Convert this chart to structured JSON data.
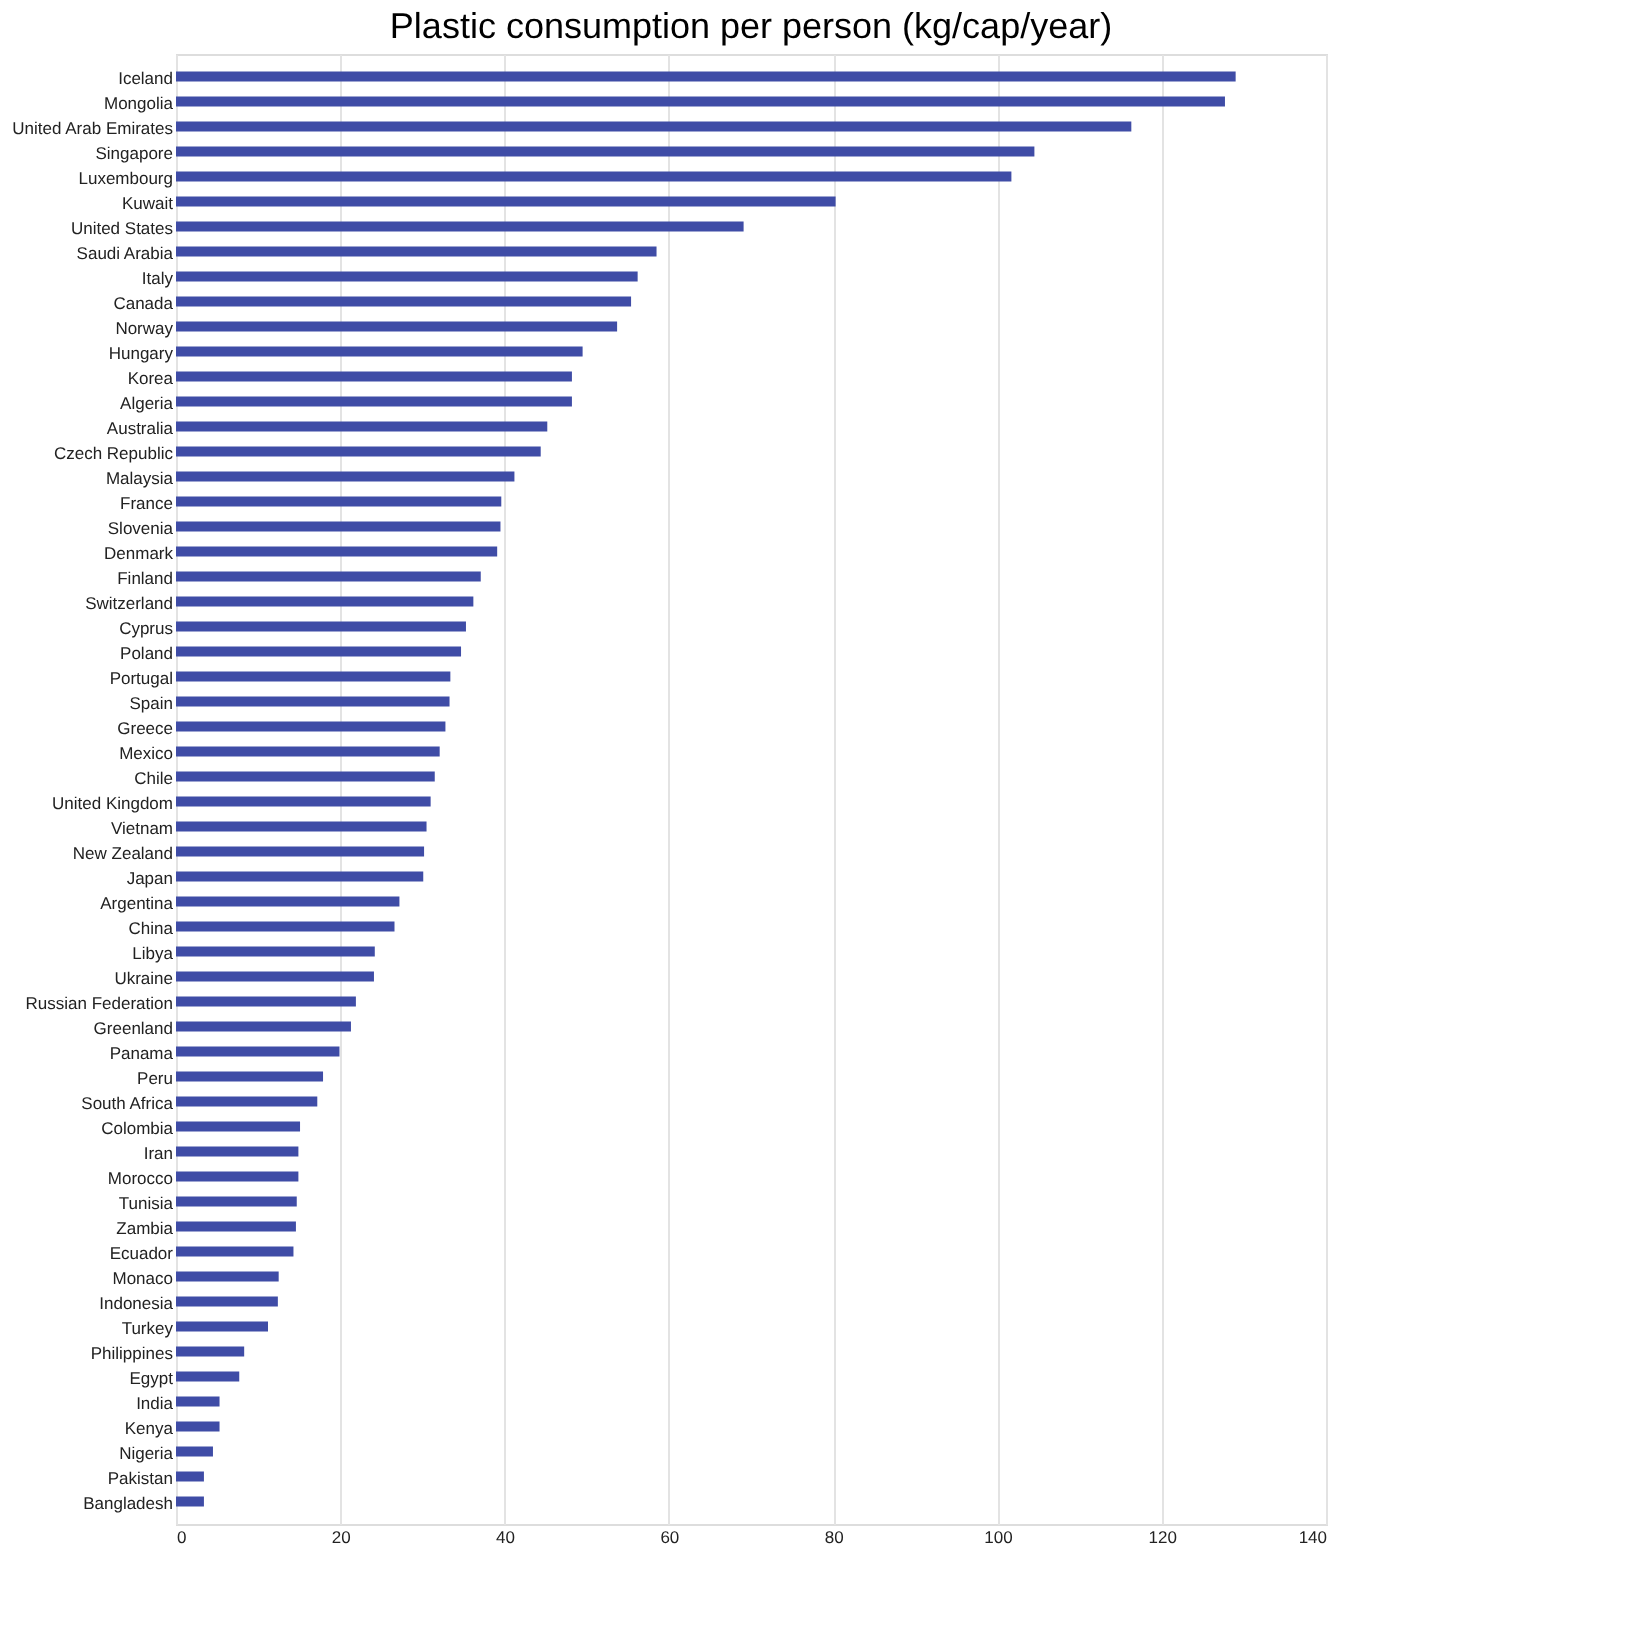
{
  "chart_data": {
    "type": "bar",
    "orientation": "horizontal",
    "title": "Plastic consumption per person (kg/cap/year)",
    "categories": [
      "Iceland",
      "Mongolia",
      "United Arab Emirates",
      "Singapore",
      "Luxembourg",
      "Kuwait",
      "United States",
      "Saudi Arabia",
      "Italy",
      "Canada",
      "Norway",
      "Hungary",
      "Korea",
      "Algeria",
      "Australia",
      "Czech Republic",
      "Malaysia",
      "France",
      "Slovenia",
      "Denmark",
      "Finland",
      "Switzerland",
      "Cyprus",
      "Poland",
      "Portugal",
      "Spain",
      "Greece",
      "Mexico",
      "Chile",
      "United Kingdom",
      "Vietnam",
      "New Zealand",
      "Japan",
      "Argentina",
      "China",
      "Libya",
      "Ukraine",
      "Russian Federation",
      "Greenland",
      "Panama",
      "Peru",
      "South Africa",
      "Colombia",
      "Iran",
      "Morocco",
      "Tunisia",
      "Zambia",
      "Ecuador",
      "Monaco",
      "Indonesia",
      "Turkey",
      "Philippines",
      "Egypt",
      "India",
      "Kenya",
      "Nigeria",
      "Pakistan",
      "Bangladesh"
    ],
    "values": [
      129.0,
      127.7,
      116.3,
      104.5,
      101.7,
      80.3,
      69.1,
      58.5,
      56.2,
      55.4,
      53.7,
      49.5,
      48.2,
      48.2,
      45.2,
      44.4,
      41.2,
      39.6,
      39.5,
      39.1,
      37.1,
      36.2,
      35.3,
      34.7,
      33.4,
      33.3,
      32.8,
      32.1,
      31.5,
      31.0,
      30.5,
      30.2,
      30.1,
      27.2,
      26.6,
      24.2,
      24.1,
      21.9,
      21.3,
      19.9,
      17.9,
      17.2,
      15.1,
      14.9,
      14.9,
      14.7,
      14.6,
      14.3,
      12.5,
      12.4,
      11.2,
      8.3,
      7.7,
      5.3,
      5.3,
      4.5,
      3.4,
      3.4
    ],
    "color": "#3f4ca6",
    "xlim": [
      0,
      140
    ],
    "xticks": [
      0,
      20,
      40,
      60,
      80,
      100,
      120,
      140
    ],
    "grid": "x"
  }
}
